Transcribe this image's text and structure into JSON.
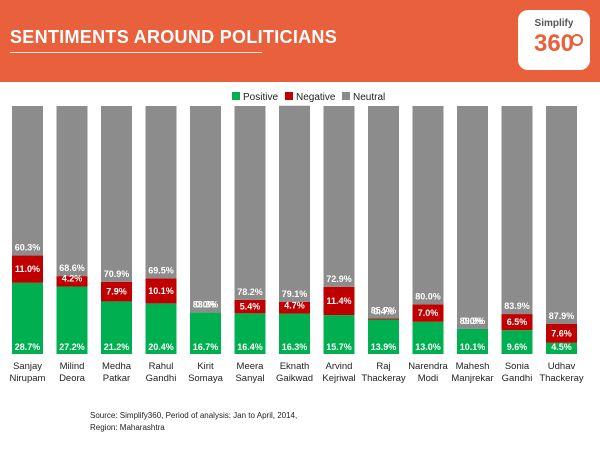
{
  "header": {
    "title": "SENTIMENTS AROUND POLITICIANS",
    "logo_top": "Simplify",
    "logo_number": "360"
  },
  "colors": {
    "header_bg": "#e8603c",
    "positive": "#00b050",
    "negative": "#c00000",
    "neutral": "#8c8c8c"
  },
  "footer": {
    "source": "Source: Simplify360, Period of analysis: Jan to April, 2014,",
    "region": "Region: Maharashtra"
  },
  "chart_data": {
    "type": "bar",
    "stacked": true,
    "percent_stacked": true,
    "legend_position": "top",
    "categories": [
      [
        "Sanjay",
        "Nirupam"
      ],
      [
        "Milind",
        "Deora"
      ],
      [
        "Medha",
        "Patkar"
      ],
      [
        "Rahul",
        "Gandhi"
      ],
      [
        "Kirit",
        "Somaya"
      ],
      [
        "Meera",
        "Sanyal"
      ],
      [
        "Eknath",
        "Gaikwad"
      ],
      [
        "Arvind",
        "Kejriwal"
      ],
      [
        "Raj",
        "Thackeray"
      ],
      [
        "Narendra",
        "Modi"
      ],
      [
        "Mahesh",
        "Manjrekar"
      ],
      [
        "Sonia",
        "Gandhi"
      ],
      [
        "Udhav",
        "Thackeray"
      ]
    ],
    "series": [
      {
        "name": "Positive",
        "values": [
          28.7,
          27.2,
          21.2,
          20.4,
          16.7,
          16.4,
          16.3,
          15.7,
          13.9,
          13.0,
          10.1,
          9.6,
          4.5
        ],
        "labels": [
          "28.7%",
          "27.2%",
          "21.2%",
          "20.4%",
          "16.7%",
          "16.4%",
          "16.3%",
          "15.7%",
          "13.9%",
          "13.0%",
          "10.1%",
          "9.6%",
          "4.5%"
        ]
      },
      {
        "name": "Negative",
        "values": [
          11.0,
          4.2,
          7.9,
          10.1,
          0.0,
          5.4,
          4.7,
          11.4,
          0.4,
          7.0,
          0.0,
          6.5,
          7.6
        ],
        "labels": [
          "11.0%",
          "4.2%",
          "7.9%",
          "10.1%",
          "0.0%",
          "5.4%",
          "4.7%",
          "11.4%",
          "0.4%",
          "7.0%",
          "0.0%",
          "6.5%",
          "7.6%"
        ]
      },
      {
        "name": "Neutral",
        "values": [
          60.3,
          68.6,
          70.9,
          69.5,
          83.3,
          78.2,
          79.1,
          72.9,
          85.7,
          80.0,
          89.9,
          83.9,
          87.9
        ],
        "labels": [
          "60.3%",
          "68.6%",
          "70.9%",
          "69.5%",
          "83.3%",
          "78.2%",
          "79.1%",
          "72.9%",
          "85.7%",
          "80.0%",
          "89.9%",
          "83.9%",
          "87.9%"
        ]
      }
    ],
    "ylim": [
      0,
      100
    ],
    "grid": false
  }
}
